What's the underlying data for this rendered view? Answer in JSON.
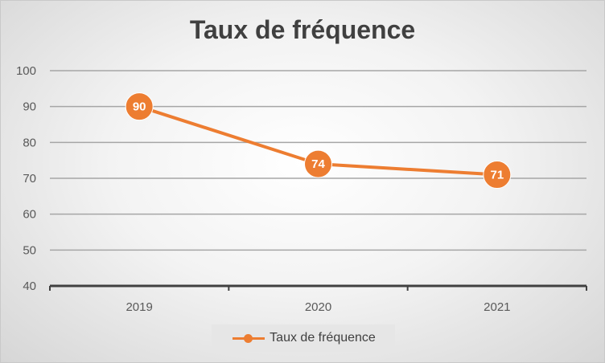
{
  "chart_data": {
    "type": "line",
    "title": "Taux de fréquence",
    "categories": [
      "2019",
      "2020",
      "2021"
    ],
    "series": [
      {
        "name": "Taux de fréquence",
        "values": [
          90,
          74,
          71
        ],
        "color": "#ED7D31"
      }
    ],
    "ylim": [
      40,
      100
    ],
    "yticks": [
      "40",
      "50",
      "60",
      "70",
      "80",
      "90",
      "100"
    ],
    "data_labels": [
      "90",
      "74",
      "71"
    ],
    "grid": true,
    "legend_position": "bottom"
  }
}
